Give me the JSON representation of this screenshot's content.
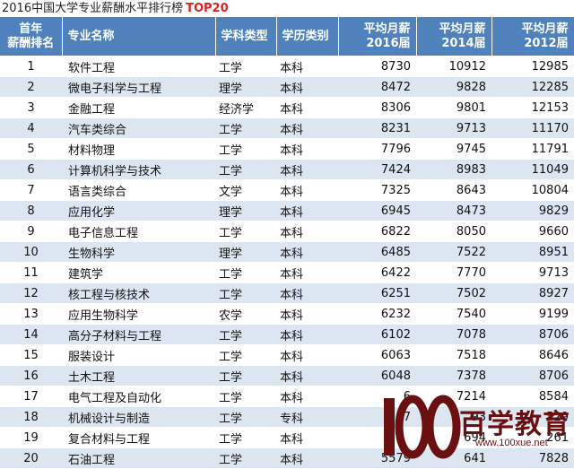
{
  "title": {
    "text": "2016中国大学专业薪酬水平排行榜",
    "highlight": "TOP20"
  },
  "table": {
    "headers": {
      "rank": [
        "首年",
        "薪酬排名"
      ],
      "major": "专业名称",
      "category": "学科类型",
      "degree": "学历类别",
      "y2016": [
        "平均月薪",
        "2016届"
      ],
      "y2014": [
        "平均月薪",
        "2014届"
      ],
      "y2012": [
        "平均月薪",
        "2012届"
      ]
    },
    "rows": [
      {
        "rank": "1",
        "major": "软件工程",
        "category": "工学",
        "degree": "本科",
        "y2016": "8730",
        "y2014": "10912",
        "y2012": "12985"
      },
      {
        "rank": "2",
        "major": "微电子科学与工程",
        "category": "理学",
        "degree": "本科",
        "y2016": "8472",
        "y2014": "9828",
        "y2012": "12285"
      },
      {
        "rank": "3",
        "major": "金融工程",
        "category": "经济学",
        "degree": "本科",
        "y2016": "8306",
        "y2014": "9801",
        "y2012": "12153"
      },
      {
        "rank": "4",
        "major": "汽车类综合",
        "category": "工学",
        "degree": "本科",
        "y2016": "8231",
        "y2014": "9713",
        "y2012": "11170"
      },
      {
        "rank": "5",
        "major": "材料物理",
        "category": "工学",
        "degree": "本科",
        "y2016": "7796",
        "y2014": "9745",
        "y2012": "11791"
      },
      {
        "rank": "6",
        "major": "计算机科学与技术",
        "category": "工学",
        "degree": "本科",
        "y2016": "7424",
        "y2014": "8983",
        "y2012": "11049"
      },
      {
        "rank": "7",
        "major": "语言类综合",
        "category": "文学",
        "degree": "本科",
        "y2016": "7325",
        "y2014": "8643",
        "y2012": "10804"
      },
      {
        "rank": "8",
        "major": "应用化学",
        "category": "理学",
        "degree": "本科",
        "y2016": "6945",
        "y2014": "8473",
        "y2012": "9829"
      },
      {
        "rank": "9",
        "major": "电子信息工程",
        "category": "工学",
        "degree": "本科",
        "y2016": "6822",
        "y2014": "8050",
        "y2012": "9660"
      },
      {
        "rank": "10",
        "major": "生物科学",
        "category": "理学",
        "degree": "本科",
        "y2016": "6485",
        "y2014": "7522",
        "y2012": "8951"
      },
      {
        "rank": "11",
        "major": "建筑学",
        "category": "工学",
        "degree": "本科",
        "y2016": "6422",
        "y2014": "7770",
        "y2012": "9713"
      },
      {
        "rank": "12",
        "major": "核工程与核技术",
        "category": "工学",
        "degree": "本科",
        "y2016": "6251",
        "y2014": "7502",
        "y2012": "8927"
      },
      {
        "rank": "13",
        "major": "应用生物科学",
        "category": "农学",
        "degree": "本科",
        "y2016": "6232",
        "y2014": "7540",
        "y2012": "9199"
      },
      {
        "rank": "14",
        "major": "高分子材料与工程",
        "category": "工学",
        "degree": "本科",
        "y2016": "6102",
        "y2014": "7078",
        "y2012": "8706"
      },
      {
        "rank": "15",
        "major": "服装设计",
        "category": "工学",
        "degree": "本科",
        "y2016": "6063",
        "y2014": "7518",
        "y2012": "8646"
      },
      {
        "rank": "16",
        "major": "土木工程",
        "category": "工学",
        "degree": "本科",
        "y2016": "6048",
        "y2014": "7378",
        "y2012": "8706"
      },
      {
        "rank": "17",
        "major": "电气工程及自动化",
        "category": "工学",
        "degree": "本科",
        "y2016": "6",
        "y2014": "7214",
        "y2012": "8584"
      },
      {
        "rank": "18",
        "major": "机械设计与制造",
        "category": "工学",
        "degree": "专科",
        "y2016": "87",
        "y2014": "93",
        "y2012": "529"
      },
      {
        "rank": "19",
        "major": "复合材料与工程",
        "category": "工学",
        "degree": "本科",
        "y2016": "",
        "y2014": "694",
        "y2012": "261"
      },
      {
        "rank": "20",
        "major": "石油工程",
        "category": "工学",
        "degree": "本科",
        "y2016": "5579",
        "y2014": "641",
        "y2012": "7828"
      }
    ]
  },
  "watermark": {
    "logo_icon": "100-logo-icon",
    "brand": "百学教育",
    "url": "www.100xue.net"
  }
}
